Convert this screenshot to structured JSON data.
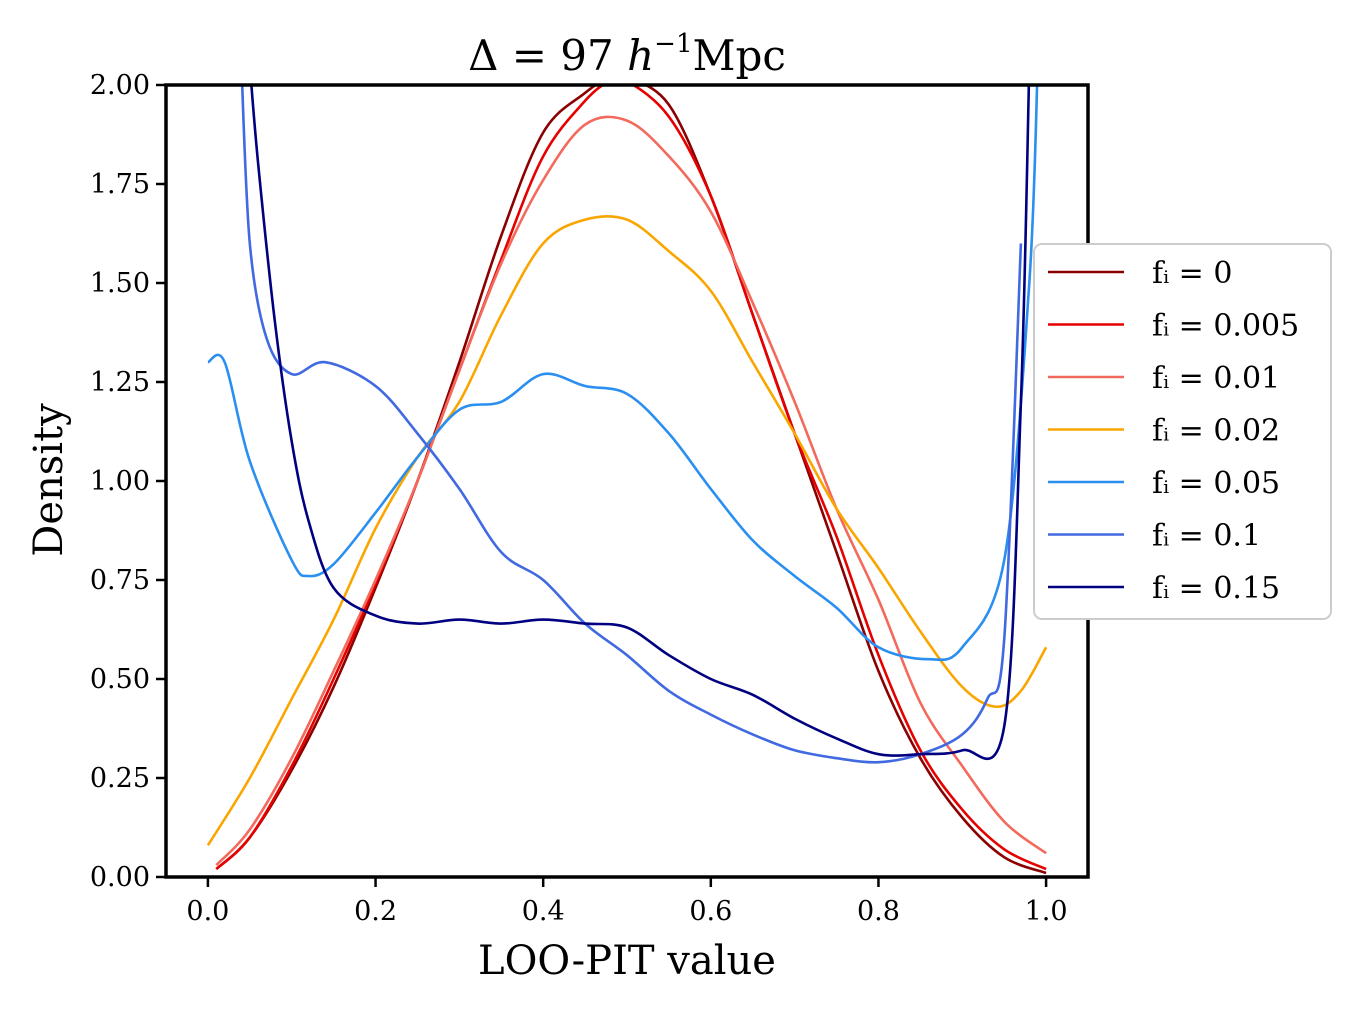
{
  "chart_data": {
    "type": "line",
    "title": "Δ = 97 h⁻¹Mpc",
    "xlabel": "LOO-PIT value",
    "ylabel": "Density",
    "xlim": [
      -0.05,
      1.05
    ],
    "ylim": [
      0,
      2.0
    ],
    "xticks": [
      0.0,
      0.2,
      0.4,
      0.6,
      0.8,
      1.0
    ],
    "xtick_labels": [
      "0.0",
      "0.2",
      "0.4",
      "0.6",
      "0.8",
      "1.0"
    ],
    "yticks": [
      0.0,
      0.25,
      0.5,
      0.75,
      1.0,
      1.25,
      1.5,
      1.75,
      2.0
    ],
    "ytick_labels": [
      "0.00",
      "0.25",
      "0.50",
      "0.75",
      "1.00",
      "1.25",
      "1.50",
      "1.75",
      "2.00"
    ],
    "legend_position": "center-right",
    "series": [
      {
        "name": "f_i = 0",
        "label": "fᵢ = 0",
        "color": "#8b0000",
        "x": [
          0.01,
          0.05,
          0.1,
          0.15,
          0.2,
          0.25,
          0.3,
          0.35,
          0.4,
          0.45,
          0.48,
          0.5,
          0.55,
          0.6,
          0.65,
          0.7,
          0.75,
          0.8,
          0.85,
          0.9,
          0.95,
          1.0
        ],
        "y": [
          0.02,
          0.1,
          0.27,
          0.48,
          0.73,
          1.0,
          1.3,
          1.62,
          1.88,
          1.98,
          2.02,
          2.02,
          1.95,
          1.72,
          1.42,
          1.12,
          0.82,
          0.52,
          0.3,
          0.15,
          0.05,
          0.01
        ]
      },
      {
        "name": "f_i = 0.005",
        "label": "fᵢ = 0.005",
        "color": "#e60000",
        "x": [
          0.01,
          0.05,
          0.1,
          0.15,
          0.2,
          0.25,
          0.3,
          0.35,
          0.4,
          0.45,
          0.48,
          0.5,
          0.55,
          0.6,
          0.65,
          0.7,
          0.75,
          0.8,
          0.85,
          0.9,
          0.95,
          1.0
        ],
        "y": [
          0.02,
          0.1,
          0.28,
          0.5,
          0.74,
          1.0,
          1.28,
          1.56,
          1.82,
          1.96,
          2.01,
          2.01,
          1.92,
          1.72,
          1.42,
          1.12,
          0.86,
          0.56,
          0.32,
          0.17,
          0.07,
          0.02
        ]
      },
      {
        "name": "f_i = 0.01",
        "label": "fᵢ = 0.01",
        "color": "#f36a5c",
        "x": [
          0.01,
          0.05,
          0.1,
          0.15,
          0.2,
          0.25,
          0.3,
          0.35,
          0.4,
          0.45,
          0.5,
          0.55,
          0.6,
          0.65,
          0.7,
          0.75,
          0.8,
          0.85,
          0.9,
          0.95,
          1.0
        ],
        "y": [
          0.03,
          0.12,
          0.3,
          0.52,
          0.75,
          1.0,
          1.28,
          1.55,
          1.76,
          1.9,
          1.91,
          1.82,
          1.68,
          1.45,
          1.2,
          0.93,
          0.7,
          0.44,
          0.28,
          0.14,
          0.06
        ]
      },
      {
        "name": "f_i = 0.02",
        "label": "fᵢ = 0.02",
        "color": "#f9a602",
        "x": [
          0.0,
          0.05,
          0.1,
          0.15,
          0.2,
          0.25,
          0.3,
          0.35,
          0.4,
          0.45,
          0.5,
          0.55,
          0.6,
          0.65,
          0.7,
          0.75,
          0.8,
          0.85,
          0.9,
          0.94,
          0.97,
          1.0
        ],
        "y": [
          0.08,
          0.25,
          0.45,
          0.65,
          0.88,
          1.06,
          1.2,
          1.42,
          1.6,
          1.66,
          1.66,
          1.58,
          1.48,
          1.3,
          1.12,
          0.93,
          0.78,
          0.62,
          0.48,
          0.43,
          0.47,
          0.58
        ]
      },
      {
        "name": "f_i = 0.05",
        "label": "fᵢ = 0.05",
        "color": "#2a8ff0",
        "x": [
          0.0,
          0.02,
          0.05,
          0.1,
          0.12,
          0.15,
          0.2,
          0.25,
          0.3,
          0.35,
          0.4,
          0.45,
          0.5,
          0.55,
          0.6,
          0.65,
          0.7,
          0.75,
          0.8,
          0.86,
          0.9,
          0.95,
          0.98,
          0.99
        ],
        "y": [
          1.3,
          1.3,
          1.05,
          0.8,
          0.76,
          0.79,
          0.92,
          1.06,
          1.18,
          1.2,
          1.27,
          1.24,
          1.22,
          1.12,
          0.98,
          0.85,
          0.76,
          0.68,
          0.58,
          0.55,
          0.58,
          0.8,
          1.5,
          2.05
        ]
      },
      {
        "name": "f_i = 0.1",
        "label": "fᵢ = 0.1",
        "color": "#4169e1",
        "x": [
          0.04,
          0.05,
          0.07,
          0.1,
          0.14,
          0.2,
          0.25,
          0.3,
          0.35,
          0.4,
          0.45,
          0.5,
          0.55,
          0.6,
          0.65,
          0.7,
          0.75,
          0.8,
          0.85,
          0.9,
          0.93,
          0.95,
          0.97
        ],
        "y": [
          2.05,
          1.6,
          1.36,
          1.27,
          1.3,
          1.24,
          1.12,
          0.98,
          0.82,
          0.75,
          0.64,
          0.56,
          0.47,
          0.41,
          0.36,
          0.32,
          0.3,
          0.29,
          0.31,
          0.36,
          0.45,
          0.6,
          1.6
        ]
      },
      {
        "name": "f_i = 0.15",
        "label": "fᵢ = 0.15",
        "color": "#000080",
        "x": [
          0.05,
          0.06,
          0.08,
          0.1,
          0.12,
          0.15,
          0.2,
          0.25,
          0.3,
          0.35,
          0.4,
          0.45,
          0.5,
          0.55,
          0.6,
          0.65,
          0.7,
          0.75,
          0.8,
          0.85,
          0.9,
          0.95,
          0.97,
          0.98
        ],
        "y": [
          2.05,
          1.8,
          1.4,
          1.1,
          0.9,
          0.73,
          0.66,
          0.64,
          0.65,
          0.64,
          0.65,
          0.64,
          0.63,
          0.56,
          0.5,
          0.46,
          0.4,
          0.35,
          0.31,
          0.31,
          0.32,
          0.38,
          1.2,
          2.05
        ]
      }
    ]
  }
}
